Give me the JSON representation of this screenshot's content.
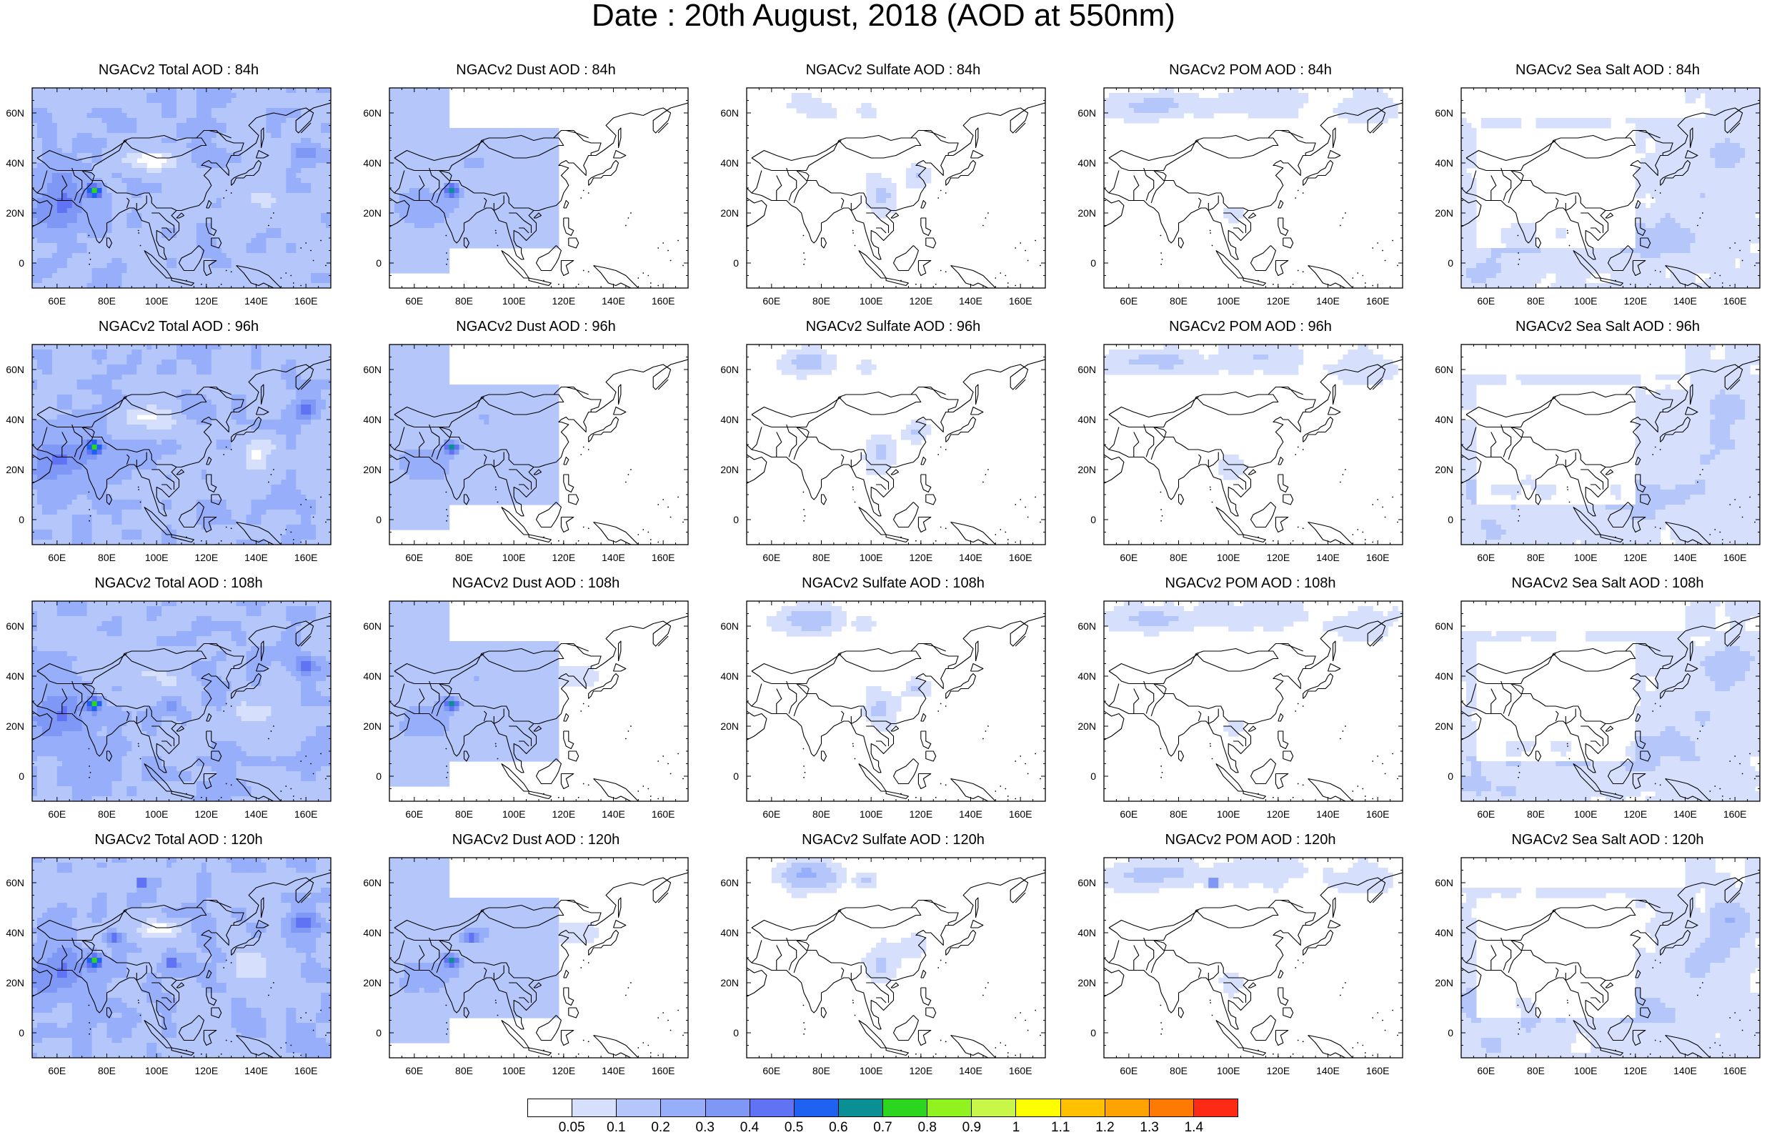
{
  "title": "Date : 20th August, 2018 (AOD at 550nm)",
  "lon_ticks": [
    "60E",
    "80E",
    "100E",
    "120E",
    "140E",
    "160E"
  ],
  "lat_ticks": [
    "60N",
    "40N",
    "20N",
    "0"
  ],
  "rows": [
    "84h",
    "96h",
    "108h",
    "120h"
  ],
  "columns": [
    "Total",
    "Dust",
    "Sulfate",
    "POM",
    "Sea Salt"
  ],
  "panels": [
    {
      "title": "NGACv2 Total AOD : 84h",
      "species": "total",
      "lead": "84h"
    },
    {
      "title": "NGACv2 Dust AOD : 84h",
      "species": "dust",
      "lead": "84h"
    },
    {
      "title": "NGACv2 Sulfate AOD : 84h",
      "species": "sulfate",
      "lead": "84h"
    },
    {
      "title": "NGACv2 POM AOD : 84h",
      "species": "pom",
      "lead": "84h"
    },
    {
      "title": "NGACv2 Sea Salt AOD : 84h",
      "species": "seasalt",
      "lead": "84h"
    },
    {
      "title": "NGACv2 Total AOD : 96h",
      "species": "total",
      "lead": "96h"
    },
    {
      "title": "NGACv2 Dust AOD : 96h",
      "species": "dust",
      "lead": "96h"
    },
    {
      "title": "NGACv2 Sulfate AOD : 96h",
      "species": "sulfate",
      "lead": "96h"
    },
    {
      "title": "NGACv2 POM AOD : 96h",
      "species": "pom",
      "lead": "96h"
    },
    {
      "title": "NGACv2 Sea Salt AOD : 96h",
      "species": "seasalt",
      "lead": "96h"
    },
    {
      "title": "NGACv2 Total AOD : 108h",
      "species": "total",
      "lead": "108h"
    },
    {
      "title": "NGACv2 Dust AOD : 108h",
      "species": "dust",
      "lead": "108h"
    },
    {
      "title": "NGACv2 Sulfate AOD : 108h",
      "species": "sulfate",
      "lead": "108h"
    },
    {
      "title": "NGACv2 POM AOD : 108h",
      "species": "pom",
      "lead": "108h"
    },
    {
      "title": "NGACv2 Sea Salt AOD : 108h",
      "species": "seasalt",
      "lead": "108h"
    },
    {
      "title": "NGACv2 Total AOD : 120h",
      "species": "total",
      "lead": "120h"
    },
    {
      "title": "NGACv2 Dust AOD : 120h",
      "species": "dust",
      "lead": "120h"
    },
    {
      "title": "NGACv2 Sulfate AOD : 120h",
      "species": "sulfate",
      "lead": "120h"
    },
    {
      "title": "NGACv2 POM AOD : 120h",
      "species": "pom",
      "lead": "120h"
    },
    {
      "title": "NGACv2 Sea Salt  AOD : 120h",
      "species": "seasalt",
      "lead": "120h"
    }
  ],
  "colorbar": {
    "labels": [
      "0.05",
      "0.1",
      "0.2",
      "0.3",
      "0.4",
      "0.5",
      "0.6",
      "0.7",
      "0.8",
      "0.9",
      "1",
      "1.1",
      "1.2",
      "1.3",
      "1.4"
    ],
    "colors": [
      "#ffffff",
      "#d6e0fc",
      "#b4c6fa",
      "#97aefa",
      "#7f98f6",
      "#5f73f4",
      "#1f61f0",
      "#0a8f94",
      "#2cd61f",
      "#90f21f",
      "#c8f74a",
      "#ffff00",
      "#ffc000",
      "#ffa300",
      "#ff7a00",
      "#ff2a14"
    ]
  }
}
